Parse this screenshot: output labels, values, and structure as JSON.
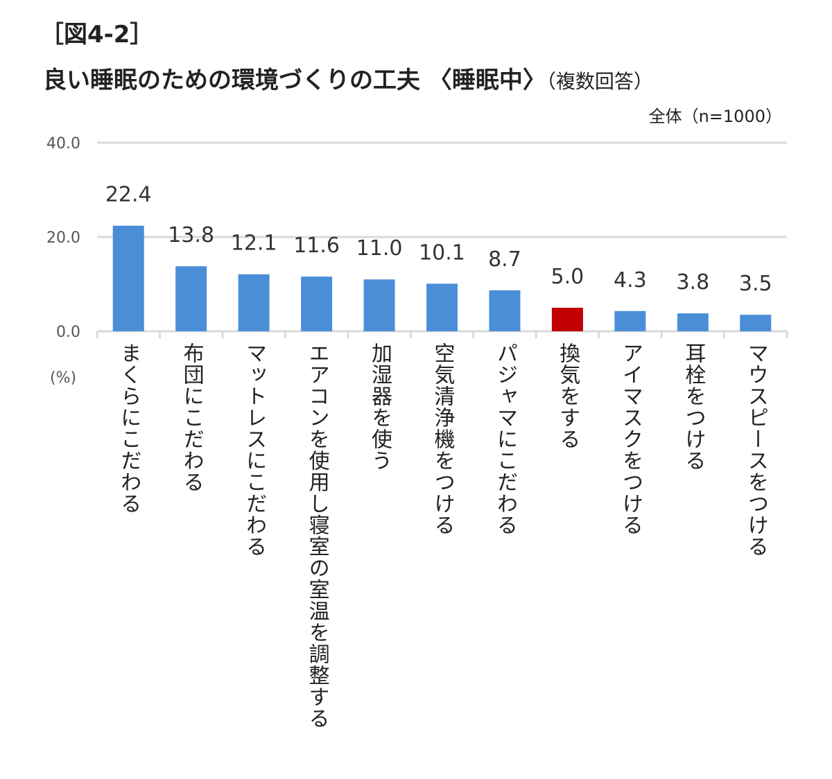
{
  "figure_label": "［図4-2］",
  "title": "良い睡眠のための環境づくりの工夫 〈睡眠中〉",
  "title_note": "（複数回答）",
  "sample_note": "全体（n=1000）",
  "chart_data": {
    "type": "bar",
    "title": "良い睡眠のための環境づくりの工夫 〈睡眠中〉（複数回答）",
    "ylabel": "(%)",
    "ylim": [
      0,
      40
    ],
    "yticks": [
      "0.0",
      "20.0",
      "40.0"
    ],
    "grid": true,
    "categories": [
      "まくらにこだわる",
      "布団にこだわる",
      "マットレスにこだわる",
      "エアコンを使用し寝室の室温を調整する",
      "加湿器を使う",
      "空気清浄機をつける",
      "パジャマにこだわる",
      "換気をする",
      "アイマスクをつける",
      "耳栓をつける",
      "マウスピースをつける"
    ],
    "values": [
      22.4,
      13.8,
      12.1,
      11.6,
      11.0,
      10.1,
      8.7,
      5.0,
      4.3,
      3.8,
      3.5
    ],
    "value_labels": [
      "22.4",
      "13.8",
      "12.1",
      "11.6",
      "11.0",
      "10.1",
      "8.7",
      "5.0",
      "4.3",
      "3.8",
      "3.5"
    ],
    "highlight_index": 7,
    "colors": {
      "bar": "#4a8ed8",
      "highlight": "#c00000",
      "grid": "#d9d9d9"
    }
  }
}
